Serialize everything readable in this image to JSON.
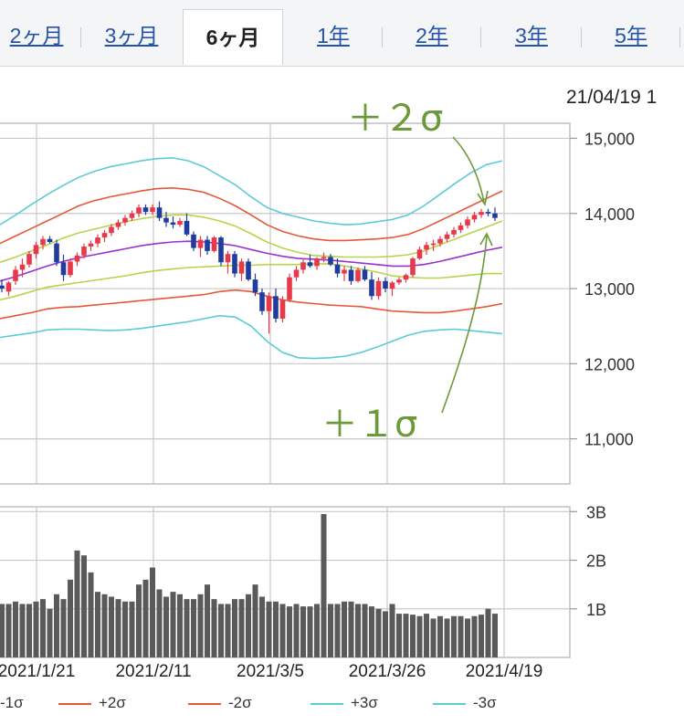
{
  "tabs": [
    {
      "label": "2ヶ月",
      "active": false
    },
    {
      "label": "3ヶ月",
      "active": false
    },
    {
      "label": "6ヶ月",
      "active": true
    },
    {
      "label": "1年",
      "active": false
    },
    {
      "label": "2年",
      "active": false
    },
    {
      "label": "3年",
      "active": false
    },
    {
      "label": "5年",
      "active": false
    }
  ],
  "date_label": "21/04/19 1",
  "annotations": {
    "plus2": "＋２σ",
    "plus1": "＋１σ"
  },
  "colors": {
    "up": "#e8394a",
    "down": "#1f3c9e",
    "ma": "#9b30d0",
    "sigma1": "#b7d44a",
    "sigma2": "#e5583a",
    "sigma3": "#5ccbd6",
    "volume": "#5a5a5a",
    "annotation": "#6a9a3a"
  },
  "chart_data": [
    {
      "type": "candlestick",
      "y_ticks": [
        "15,000",
        "14,000",
        "13,000",
        "12,000",
        "11,000"
      ],
      "ylim": [
        10400,
        15200
      ],
      "x_ticks": [
        "2021/1/21",
        "2021/2/11",
        "2021/3/5",
        "2021/3/26",
        "2021/4/19"
      ],
      "grid": true,
      "candles": [
        [
          13040,
          13120,
          12950,
          13000
        ],
        [
          12960,
          13100,
          12900,
          13080
        ],
        [
          13100,
          13300,
          13050,
          13250
        ],
        [
          13250,
          13400,
          13150,
          13320
        ],
        [
          13320,
          13500,
          13280,
          13460
        ],
        [
          13460,
          13620,
          13400,
          13580
        ],
        [
          13580,
          13700,
          13520,
          13660
        ],
        [
          13660,
          13700,
          13600,
          13620
        ],
        [
          13600,
          13650,
          13300,
          13350
        ],
        [
          13350,
          13450,
          13100,
          13180
        ],
        [
          13180,
          13400,
          13150,
          13360
        ],
        [
          13360,
          13480,
          13300,
          13440
        ],
        [
          13440,
          13600,
          13400,
          13560
        ],
        [
          13560,
          13640,
          13500,
          13600
        ],
        [
          13600,
          13720,
          13550,
          13680
        ],
        [
          13680,
          13780,
          13620,
          13740
        ],
        [
          13740,
          13860,
          13700,
          13820
        ],
        [
          13820,
          13920,
          13780,
          13880
        ],
        [
          13880,
          13980,
          13840,
          13940
        ],
        [
          13940,
          14040,
          13900,
          14000
        ],
        [
          14000,
          14120,
          13950,
          14080
        ],
        [
          14080,
          14120,
          13980,
          14020
        ],
        [
          14020,
          14120,
          13980,
          14080
        ],
        [
          14080,
          14160,
          13900,
          13940
        ],
        [
          13940,
          14020,
          13820,
          13880
        ],
        [
          13880,
          13960,
          13800,
          13850
        ],
        [
          13850,
          13940,
          13820,
          13900
        ],
        [
          13900,
          14000,
          13700,
          13720
        ],
        [
          13720,
          13760,
          13500,
          13540
        ],
        [
          13540,
          13700,
          13420,
          13650
        ],
        [
          13650,
          13700,
          13450,
          13500
        ],
        [
          13500,
          13700,
          13480,
          13680
        ],
        [
          13680,
          13700,
          13300,
          13350
        ],
        [
          13350,
          13500,
          13200,
          13460
        ],
        [
          13460,
          13500,
          13150,
          13200
        ],
        [
          13200,
          13400,
          13100,
          13360
        ],
        [
          13360,
          13400,
          13100,
          13120
        ],
        [
          13120,
          13200,
          12900,
          12950
        ],
        [
          12950,
          13000,
          12650,
          12700
        ],
        [
          12700,
          12950,
          12400,
          12900
        ],
        [
          12900,
          13000,
          12550,
          12600
        ],
        [
          12600,
          12900,
          12550,
          12850
        ],
        [
          12850,
          13200,
          12820,
          13150
        ],
        [
          13150,
          13300,
          13100,
          13250
        ],
        [
          13250,
          13400,
          13200,
          13350
        ],
        [
          13350,
          13450,
          13280,
          13300
        ],
        [
          13300,
          13420,
          13250,
          13400
        ],
        [
          13400,
          13480,
          13350,
          13420
        ],
        [
          13420,
          13460,
          13300,
          13320
        ],
        [
          13320,
          13400,
          13150,
          13200
        ],
        [
          13200,
          13300,
          13100,
          13250
        ],
        [
          13250,
          13300,
          13050,
          13100
        ],
        [
          13100,
          13280,
          13080,
          13250
        ],
        [
          13250,
          13300,
          13100,
          13120
        ],
        [
          13120,
          13220,
          12850,
          12900
        ],
        [
          12900,
          13150,
          12850,
          13100
        ],
        [
          13100,
          13150,
          12950,
          13000
        ],
        [
          13000,
          13100,
          12900,
          13080
        ],
        [
          13080,
          13150,
          13050,
          13120
        ],
        [
          13120,
          13200,
          13080,
          13180
        ],
        [
          13180,
          13420,
          13150,
          13400
        ],
        [
          13400,
          13560,
          13380,
          13520
        ],
        [
          13520,
          13620,
          13450,
          13580
        ],
        [
          13580,
          13650,
          13500,
          13600
        ],
        [
          13600,
          13700,
          13560,
          13660
        ],
        [
          13660,
          13760,
          13620,
          13720
        ],
        [
          13720,
          13820,
          13680,
          13780
        ],
        [
          13780,
          13880,
          13740,
          13840
        ],
        [
          13840,
          13960,
          13800,
          13920
        ],
        [
          13920,
          14020,
          13880,
          13980
        ],
        [
          13980,
          14060,
          13940,
          14020
        ],
        [
          14020,
          14060,
          13960,
          14000
        ],
        [
          14000,
          14080,
          13900,
          13940
        ]
      ],
      "ma": [
        13100,
        13160,
        13230,
        13300,
        13360,
        13410,
        13450,
        13490,
        13530,
        13570,
        13600,
        13620,
        13630,
        13620,
        13600,
        13570,
        13520,
        13470,
        13430,
        13400,
        13390,
        13380,
        13360,
        13340,
        13320,
        13300,
        13300,
        13320,
        13360,
        13410,
        13460,
        13510,
        13550
      ],
      "p1": [
        13350,
        13420,
        13500,
        13580,
        13670,
        13740,
        13790,
        13840,
        13890,
        13930,
        13960,
        13980,
        13980,
        13950,
        13900,
        13830,
        13730,
        13620,
        13540,
        13480,
        13440,
        13430,
        13420,
        13420,
        13420,
        13430,
        13450,
        13500,
        13580,
        13660,
        13740,
        13820,
        13900
      ],
      "m1": [
        12850,
        12900,
        12960,
        13020,
        13050,
        13080,
        13110,
        13140,
        13170,
        13210,
        13240,
        13260,
        13280,
        13290,
        13300,
        13310,
        13310,
        13320,
        13320,
        13320,
        13330,
        13330,
        13300,
        13260,
        13220,
        13170,
        13150,
        13140,
        13140,
        13160,
        13180,
        13200,
        13200
      ],
      "p2": [
        13600,
        13700,
        13800,
        13900,
        14000,
        14100,
        14170,
        14220,
        14260,
        14300,
        14330,
        14340,
        14320,
        14280,
        14200,
        14100,
        13980,
        13850,
        13760,
        13700,
        13660,
        13640,
        13640,
        13650,
        13660,
        13680,
        13720,
        13800,
        13900,
        14000,
        14100,
        14200,
        14300
      ],
      "m2": [
        12600,
        12640,
        12680,
        12730,
        12750,
        12760,
        12780,
        12800,
        12820,
        12840,
        12860,
        12880,
        12900,
        12920,
        12960,
        12980,
        12960,
        12900,
        12850,
        12820,
        12800,
        12780,
        12770,
        12760,
        12730,
        12700,
        12690,
        12680,
        12680,
        12700,
        12730,
        12760,
        12800
      ],
      "p3": [
        13850,
        13980,
        14120,
        14250,
        14370,
        14480,
        14560,
        14620,
        14660,
        14700,
        14730,
        14740,
        14700,
        14620,
        14500,
        14380,
        14220,
        14080,
        14000,
        13950,
        13900,
        13870,
        13850,
        13860,
        13890,
        13920,
        13980,
        14100,
        14250,
        14400,
        14540,
        14650,
        14700
      ],
      "m3": [
        12350,
        12380,
        12410,
        12450,
        12460,
        12460,
        12450,
        12440,
        12450,
        12470,
        12500,
        12530,
        12560,
        12600,
        12640,
        12620,
        12500,
        12300,
        12150,
        12080,
        12070,
        12080,
        12100,
        12150,
        12220,
        12300,
        12380,
        12430,
        12450,
        12460,
        12440,
        12420,
        12400
      ]
    },
    {
      "type": "bar",
      "y_ticks": [
        "3B",
        "2B",
        "1B"
      ],
      "ylim": [
        0,
        3.1
      ],
      "values": [
        1.1,
        1.1,
        1.15,
        1.1,
        1.1,
        1.15,
        1.2,
        1.0,
        1.3,
        1.2,
        1.6,
        2.2,
        2.1,
        1.75,
        1.35,
        1.3,
        1.25,
        1.2,
        1.15,
        1.15,
        1.5,
        1.6,
        1.85,
        1.4,
        1.25,
        1.35,
        1.3,
        1.2,
        1.2,
        1.3,
        1.5,
        1.2,
        1.1,
        1.1,
        1.2,
        1.2,
        1.3,
        1.5,
        1.25,
        1.15,
        1.15,
        1.1,
        1.05,
        1.1,
        1.05,
        1.05,
        1.1,
        2.95,
        1.1,
        1.1,
        1.15,
        1.15,
        1.1,
        1.1,
        1.05,
        1.0,
        0.95,
        1.1,
        0.9,
        0.9,
        0.88,
        0.85,
        0.9,
        0.8,
        0.85,
        0.8,
        0.85,
        0.85,
        0.8,
        0.85,
        0.88,
        1.0,
        0.9
      ]
    }
  ],
  "legend": [
    {
      "label": "-1σ",
      "color": "#b7d44a"
    },
    {
      "label": "+2σ",
      "color": "#e5583a"
    },
    {
      "label": "-2σ",
      "color": "#e5583a"
    },
    {
      "label": "+3σ",
      "color": "#5ccbd6"
    },
    {
      "label": "-3σ",
      "color": "#5ccbd6"
    }
  ]
}
